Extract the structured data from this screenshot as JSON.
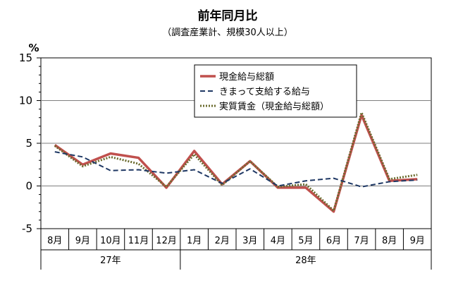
{
  "chart_data": {
    "type": "line",
    "title": "前年同月比",
    "subtitle": "（調査産業計、規模30人以上）",
    "ylabel": "%",
    "ylim": [
      -5,
      15
    ],
    "yticks": [
      "15",
      "10",
      "5",
      "0",
      "-5"
    ],
    "grid": true,
    "legend_position": "top-right",
    "categories": [
      "8月",
      "9月",
      "10月",
      "11月",
      "12月",
      "1月",
      "2月",
      "3月",
      "4月",
      "5月",
      "6月",
      "7月",
      "8月",
      "9月"
    ],
    "year_groups": [
      {
        "label": "27年",
        "count": 5
      },
      {
        "label": "28年",
        "count": 9
      }
    ],
    "series": [
      {
        "name": "現金給与総額",
        "color": "#c0504d",
        "style": "solid",
        "values": [
          4.8,
          2.5,
          3.8,
          3.3,
          -0.2,
          4.1,
          0.2,
          2.9,
          -0.2,
          -0.2,
          -3.0,
          8.3,
          0.6,
          0.8
        ]
      },
      {
        "name": "きまって支給する給与",
        "color": "#1f3864",
        "style": "dashed",
        "values": [
          4.0,
          3.4,
          1.8,
          1.9,
          1.5,
          1.9,
          0.3,
          2.0,
          0.0,
          0.6,
          0.9,
          -0.1,
          0.5,
          0.7
        ]
      },
      {
        "name": "実質賃金（現金給与総額）",
        "color": "#6b6b2e",
        "style": "dotted",
        "values": [
          4.7,
          2.3,
          3.4,
          2.6,
          -0.1,
          3.7,
          0.1,
          2.9,
          -0.1,
          0.2,
          -2.9,
          8.6,
          0.8,
          1.3
        ]
      }
    ]
  }
}
